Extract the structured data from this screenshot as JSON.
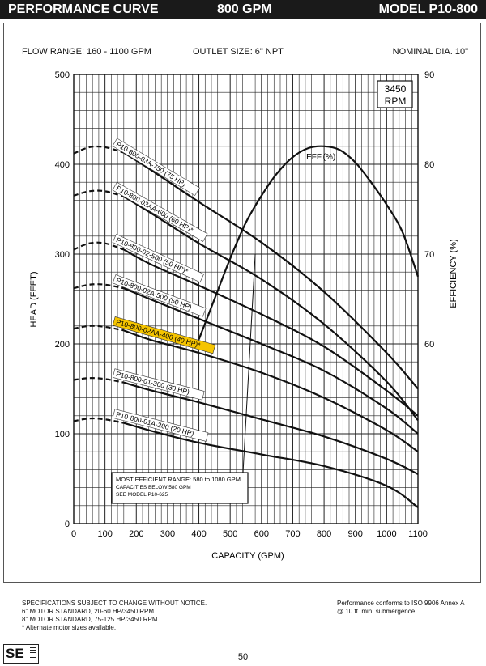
{
  "header": {
    "left_title": "PERFORMANCE CURVE",
    "center_title": "800 GPM",
    "right_title": "MODEL  P10-800"
  },
  "specs": {
    "flow_range": "FLOW RANGE: 160 - 1100 GPM",
    "outlet_size": "OUTLET SIZE: 6\" NPT",
    "nominal_dia": "NOMINAL DIA. 10\""
  },
  "chart_data": {
    "type": "line",
    "xlabel": "CAPACITY (GPM)",
    "ylabel": "HEAD (FEET)",
    "y2label": "EFFICIENCY (%)",
    "xlim": [
      0,
      1100
    ],
    "ylim": [
      0,
      500
    ],
    "y2lim": [
      40,
      90
    ],
    "x_ticks": [
      0,
      100,
      200,
      300,
      400,
      500,
      600,
      700,
      800,
      900,
      1000,
      1100
    ],
    "y_ticks": [
      0,
      100,
      200,
      300,
      400,
      500
    ],
    "y2_ticks": [
      60,
      70,
      80,
      90
    ],
    "grid": true,
    "rpm_label": "3450\nRPM",
    "series": [
      {
        "name": "P10-800-03A-750 (75 HP)",
        "highlight": false,
        "dashed_x_max": 160,
        "x": [
          0,
          50,
          100,
          160,
          250,
          400,
          600,
          800,
          1000,
          1100
        ],
        "y": [
          412,
          419,
          419,
          413,
          393,
          358,
          313,
          258,
          190,
          150
        ]
      },
      {
        "name": "P10-800-03AA-600 (60 HP)*",
        "highlight": false,
        "dashed_x_max": 160,
        "x": [
          0,
          50,
          100,
          160,
          250,
          400,
          600,
          800,
          1000,
          1100
        ],
        "y": [
          365,
          370,
          370,
          364,
          345,
          312,
          272,
          222,
          158,
          115
        ]
      },
      {
        "name": "P10-800-02-500 (50 HP)*",
        "highlight": false,
        "dashed_x_max": 160,
        "x": [
          0,
          50,
          100,
          160,
          250,
          400,
          600,
          800,
          1000,
          1100
        ],
        "y": [
          305,
          312,
          312,
          305,
          288,
          265,
          233,
          197,
          148,
          120
        ]
      },
      {
        "name": "P10-800-02A-500 (50 HP)",
        "highlight": false,
        "dashed_x_max": 160,
        "x": [
          0,
          50,
          100,
          160,
          250,
          400,
          600,
          800,
          1000,
          1100
        ],
        "y": [
          262,
          266,
          266,
          262,
          249,
          228,
          200,
          170,
          128,
          100
        ]
      },
      {
        "name": "P10-800-02AA-400 (40 HP)*",
        "highlight": true,
        "dashed_x_max": 160,
        "x": [
          0,
          50,
          100,
          160,
          250,
          400,
          600,
          800,
          1000,
          1100
        ],
        "y": [
          217,
          220,
          219,
          215,
          204,
          190,
          168,
          140,
          104,
          80
        ]
      },
      {
        "name": "P10-800-01-300 (30 HP)",
        "highlight": false,
        "dashed_x_max": 160,
        "x": [
          0,
          50,
          100,
          160,
          250,
          400,
          600,
          800,
          1000,
          1100
        ],
        "y": [
          160,
          162,
          161,
          157,
          148,
          135,
          116,
          97,
          72,
          55
        ]
      },
      {
        "name": "P10-800-01A-200 (20 HP)",
        "highlight": false,
        "dashed_x_max": 160,
        "x": [
          0,
          50,
          100,
          160,
          250,
          400,
          600,
          800,
          1000,
          1100
        ],
        "y": [
          114,
          117,
          116,
          112,
          103,
          90,
          77,
          64,
          42,
          18
        ]
      },
      {
        "name": "EFF.(%)",
        "axis": "right",
        "x": [
          400,
          450,
          500,
          550,
          600,
          650,
          700,
          750,
          800,
          850,
          900,
          950,
          1000,
          1050,
          1100
        ],
        "y": [
          60.5,
          65.0,
          69.5,
          73.5,
          76.5,
          79.0,
          80.8,
          81.8,
          82.0,
          81.6,
          80.2,
          78.0,
          75.5,
          72.5,
          67.5
        ]
      }
    ],
    "annotation": {
      "lines": [
        "MOST EFFICIENT RANGE: 580 to 1080 GPM",
        "CAPACITIES BELOW 580 GPM",
        "SEE  MODEL P10-625"
      ],
      "points_to": [
        580,
        70
      ]
    }
  },
  "footer": {
    "left_lines": [
      "SPECIFICATIONS SUBJECT TO CHANGE WITHOUT NOTICE.",
      "6\" MOTOR STANDARD, 20-60 HP/3450 RPM.",
      "8\" MOTOR STANDARD, 75-125 HP/3450 RPM.",
      "* Alternate motor sizes available."
    ],
    "right_lines": [
      "Performance conforms to ISO 9906 Annex A",
      "@ 10 ft. min. submergence."
    ],
    "page_number": "50"
  },
  "logo": {
    "text": "SE"
  },
  "colors": {
    "header_bg": "#1a1a1a",
    "highlight": "#f5c400",
    "line": "#111111"
  }
}
